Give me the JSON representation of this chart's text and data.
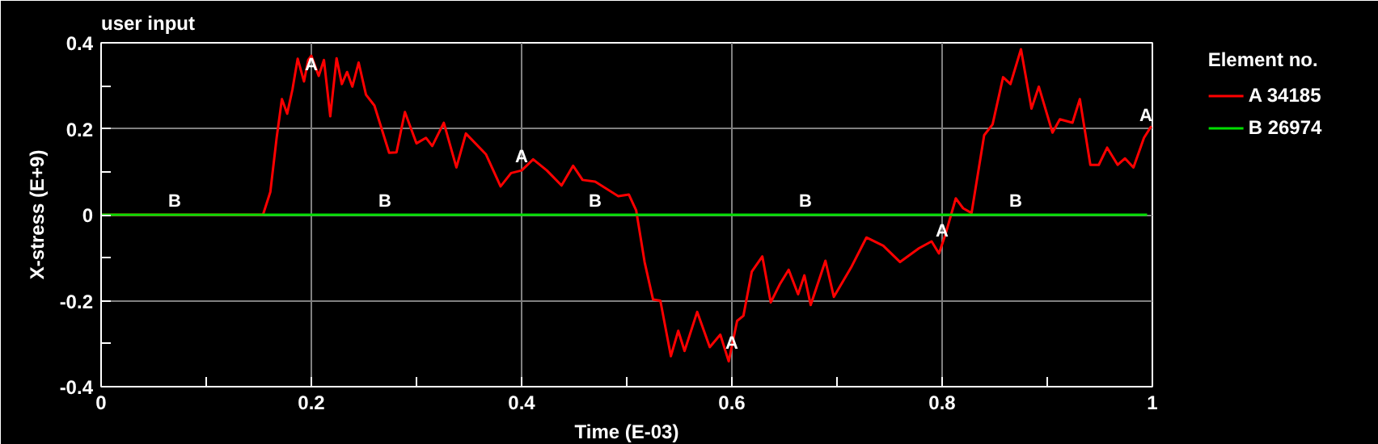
{
  "chart_data": {
    "type": "line",
    "title": "user input",
    "xlabel": "Time (E-03)",
    "ylabel": "X-stress (E+9)",
    "legend_title": "Element no.",
    "xlim": [
      0,
      1
    ],
    "ylim": [
      -0.4,
      0.4
    ],
    "xticks": [
      0,
      {
        "value": 0.1,
        "label": null
      },
      0.2,
      {
        "value": 0.3,
        "label": null
      },
      0.4,
      {
        "value": 0.5,
        "label": null
      },
      0.6,
      {
        "value": 0.7,
        "label": null
      },
      0.8,
      {
        "value": 0.9,
        "label": null
      },
      1
    ],
    "yticks": [
      -0.4,
      {
        "value": -0.3,
        "label": null
      },
      -0.2,
      {
        "value": -0.1,
        "label": null
      },
      0,
      {
        "value": 0.1,
        "label": null
      },
      0.2,
      {
        "value": 0.3,
        "label": null
      },
      0.4
    ],
    "grid": true,
    "legend": "top right",
    "marker": "none",
    "line_style": "solid",
    "series": [
      {
        "name": "A 34185",
        "color": "#ff0000",
        "x": [
          0,
          0.154,
          0.161,
          0.167,
          0.172,
          0.177,
          0.182,
          0.187,
          0.193,
          0.197,
          0.2,
          0.207,
          0.212,
          0.218,
          0.224,
          0.229,
          0.234,
          0.239,
          0.245,
          0.252,
          0.26,
          0.274,
          0.281,
          0.289,
          0.3,
          0.309,
          0.315,
          0.326,
          0.338,
          0.347,
          0.366,
          0.38,
          0.39,
          0.4,
          0.411,
          0.424,
          0.438,
          0.449,
          0.458,
          0.47,
          0.492,
          0.502,
          0.509,
          0.517,
          0.525,
          0.532,
          0.542,
          0.549,
          0.555,
          0.567,
          0.579,
          0.589,
          0.597,
          0.605,
          0.611,
          0.619,
          0.629,
          0.637,
          0.646,
          0.654,
          0.663,
          0.669,
          0.675,
          0.689,
          0.697,
          0.714,
          0.728,
          0.744,
          0.76,
          0.778,
          0.79,
          0.797,
          0.803,
          0.813,
          0.82,
          0.828,
          0.84,
          0.848,
          0.858,
          0.865,
          0.875,
          0.885,
          0.892,
          0.905,
          0.912,
          0.924,
          0.931,
          0.941,
          0.949,
          0.957,
          0.967,
          0.974,
          0.982,
          0.992,
          0.999
        ],
        "values": [
          0,
          0,
          0.053,
          0.179,
          0.269,
          0.235,
          0.291,
          0.363,
          0.31,
          0.36,
          0.37,
          0.323,
          0.36,
          0.229,
          0.364,
          0.304,
          0.332,
          0.298,
          0.354,
          0.279,
          0.254,
          0.144,
          0.145,
          0.239,
          0.166,
          0.179,
          0.16,
          0.214,
          0.11,
          0.189,
          0.141,
          0.066,
          0.097,
          0.103,
          0.129,
          0.103,
          0.068,
          0.114,
          0.081,
          0.077,
          0.043,
          0.047,
          0.01,
          -0.11,
          -0.197,
          -0.2,
          -0.329,
          -0.27,
          -0.317,
          -0.226,
          -0.308,
          -0.279,
          -0.341,
          -0.247,
          -0.235,
          -0.132,
          -0.097,
          -0.204,
          -0.16,
          -0.128,
          -0.185,
          -0.141,
          -0.21,
          -0.107,
          -0.191,
          -0.12,
          -0.053,
          -0.072,
          -0.11,
          -0.078,
          -0.062,
          -0.09,
          -0.047,
          0.038,
          0.015,
          0.004,
          0.185,
          0.21,
          0.32,
          0.304,
          0.385,
          0.247,
          0.298,
          0.191,
          0.222,
          0.214,
          0.269,
          0.116,
          0.116,
          0.156,
          0.116,
          0.131,
          0.11,
          0.179,
          0.206
        ]
      },
      {
        "name": "B 26974",
        "color": "#00dd00",
        "x": [
          0,
          0.2,
          0.4,
          0.6,
          0.8,
          0.995
        ],
        "values": [
          0,
          0,
          0,
          0,
          0,
          0
        ]
      }
    ],
    "annotations": [
      {
        "text": "A",
        "x": 0.2,
        "y": 0.37
      },
      {
        "text": "A",
        "x": 0.4,
        "y": 0.103
      },
      {
        "text": "A",
        "x": 0.6,
        "y": -0.33
      },
      {
        "text": "A",
        "x": 0.8,
        "y": -0.07
      },
      {
        "text": "A",
        "x": 1.0,
        "y": 0.2
      },
      {
        "text": "B",
        "x": 0.07,
        "y": 0
      },
      {
        "text": "B",
        "x": 0.27,
        "y": 0
      },
      {
        "text": "B",
        "x": 0.47,
        "y": 0
      },
      {
        "text": "B",
        "x": 0.67,
        "y": 0
      },
      {
        "text": "B",
        "x": 0.87,
        "y": 0
      }
    ]
  }
}
